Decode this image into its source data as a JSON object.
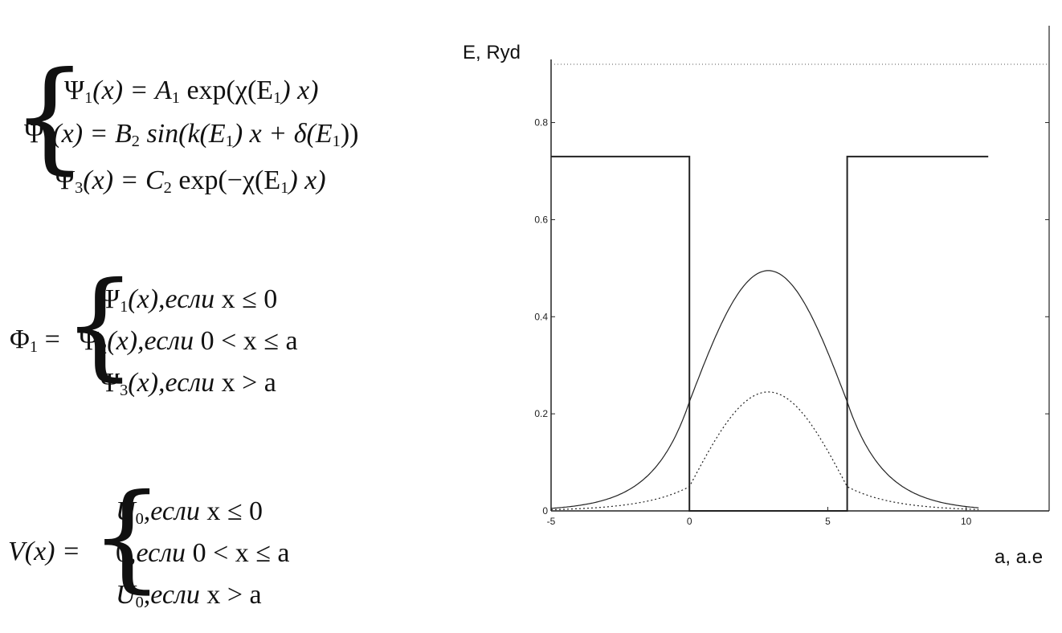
{
  "system1": {
    "lines": [
      [
        "Ψ",
        "1",
        "(x) = A",
        "1",
        " exp(χ(E",
        "1",
        ") x)"
      ],
      [
        "Ψ",
        "2",
        "(x) = B",
        "2",
        " sin(k(E",
        "1",
        ") x + δ(E",
        "1",
        "))"
      ],
      [
        "Ψ",
        "3",
        "(x) = C",
        "2",
        " exp(−χ(E",
        "1",
        ") x)"
      ]
    ]
  },
  "phi": {
    "lhs": "Φ",
    "lhs_sub": "1",
    "cases": [
      {
        "func": "Ψ",
        "sub": "1",
        "arg": "(x),",
        "word": "если",
        "cond": "x ≤ 0"
      },
      {
        "func": "Ψ",
        "sub": "2",
        "arg": "(x),",
        "word": "если",
        "cond": "0 < x ≤ a"
      },
      {
        "func": "Ψ",
        "sub": "3",
        "arg": "(x),",
        "word": "если",
        "cond": "x > a"
      }
    ]
  },
  "potential": {
    "lhs": "V(x) =",
    "cases": [
      {
        "val": "U",
        "sub": "0",
        "word": ",если",
        "cond": "x ≤ 0"
      },
      {
        "val": "0",
        "sub": "",
        "word": ",если",
        "cond": "0 < x ≤ a"
      },
      {
        "val": "U",
        "sub": "0",
        "word": ",если",
        "cond": "x > a"
      }
    ]
  },
  "chart_data": {
    "type": "line",
    "xlabel": "a, a.e",
    "ylabel": "E, Ryd",
    "xlim": [
      -5,
      13
    ],
    "ylim": [
      0,
      0.93
    ],
    "xticks": [
      {
        "v": -5,
        "label": "-5"
      },
      {
        "v": 0,
        "label": "0"
      },
      {
        "v": 5,
        "label": "5"
      },
      {
        "v": 10,
        "label": "10"
      }
    ],
    "yticks": [
      {
        "v": 0,
        "label": "0"
      },
      {
        "v": 0.2,
        "label": "0.2"
      },
      {
        "v": 0.4,
        "label": "0.4"
      },
      {
        "v": 0.6,
        "label": "0.6"
      },
      {
        "v": 0.8,
        "label": "0.8"
      }
    ],
    "top_dotted_y": 0.92,
    "series": [
      {
        "style": "solid",
        "kind": "step",
        "points": [
          [
            -5,
            0.73
          ],
          [
            0,
            0.73
          ],
          [
            0,
            0
          ],
          [
            5.7,
            0
          ],
          [
            5.7,
            0.73
          ],
          [
            10.8,
            0.73
          ]
        ]
      },
      {
        "style": "solid",
        "kind": "curve",
        "well": [
          0,
          5.7
        ],
        "peak": 0.495,
        "edge": 0.225,
        "decay": 0.75
      },
      {
        "style": "dotted",
        "kind": "curve",
        "well": [
          0,
          5.7
        ],
        "peak": 0.245,
        "edge": 0.05,
        "decay": 0.6
      }
    ]
  }
}
